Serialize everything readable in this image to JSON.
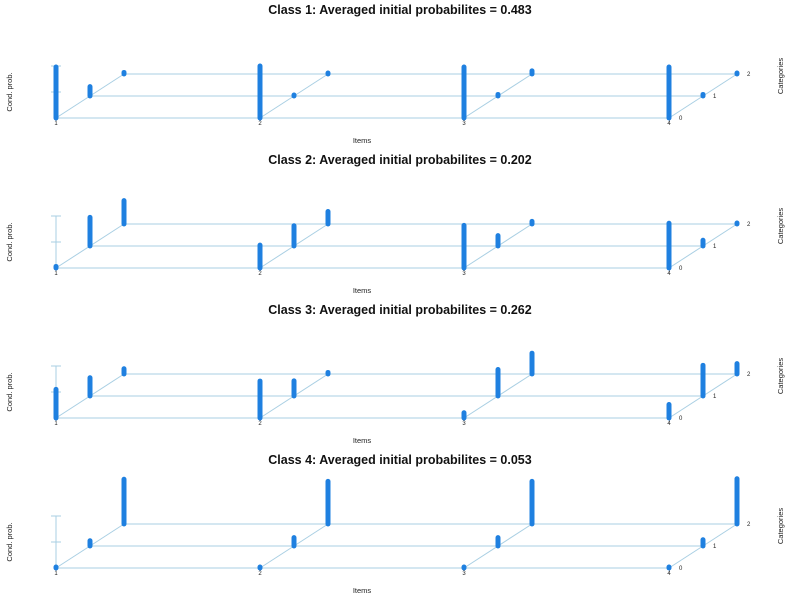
{
  "chart_data": [
    {
      "type": "bar",
      "title": "Class 1: Averaged initial probabilites = 0.483",
      "xlabel": "Items",
      "ylabel": "Cond. prob.",
      "zlabel": "Categories",
      "items": [
        "1",
        "2",
        "3",
        "4"
      ],
      "categories": [
        "0",
        "1",
        "2"
      ],
      "ylim": [
        0,
        1
      ],
      "grid": true,
      "values": [
        [
          0.98,
          0.18,
          0.03
        ],
        [
          1.0,
          0.02,
          0.02
        ],
        [
          0.98,
          0.03,
          0.06
        ],
        [
          0.98,
          0.03,
          0.02
        ]
      ]
    },
    {
      "type": "bar",
      "title": "Class 2: Averaged initial probabilites = 0.202",
      "xlabel": "Items",
      "ylabel": "Cond. prob.",
      "zlabel": "Categories",
      "items": [
        "1",
        "2",
        "3",
        "4"
      ],
      "categories": [
        "0",
        "1",
        "2"
      ],
      "ylim": [
        0,
        1
      ],
      "grid": true,
      "values": [
        [
          0.03,
          0.55,
          0.45
        ],
        [
          0.44,
          0.39,
          0.24
        ],
        [
          0.82,
          0.2,
          0.05
        ],
        [
          0.86,
          0.11,
          0.02
        ]
      ]
    },
    {
      "type": "bar",
      "title": "Class 3: Averaged initial probabilites = 0.262",
      "xlabel": "Items",
      "ylabel": "Cond. prob.",
      "zlabel": "Categories",
      "items": [
        "1",
        "2",
        "3",
        "4"
      ],
      "categories": [
        "0",
        "1",
        "2"
      ],
      "ylim": [
        0,
        1
      ],
      "grid": true,
      "values": [
        [
          0.55,
          0.35,
          0.1
        ],
        [
          0.71,
          0.29,
          0.03
        ],
        [
          0.1,
          0.51,
          0.4
        ],
        [
          0.26,
          0.59,
          0.2
        ]
      ]
    },
    {
      "type": "bar",
      "title": "Class 4: Averaged initial probabilites = 0.053",
      "xlabel": "Items",
      "ylabel": "Cond. prob.",
      "zlabel": "Categories",
      "items": [
        "1",
        "2",
        "3",
        "4"
      ],
      "categories": [
        "0",
        "1",
        "2"
      ],
      "ylim": [
        0,
        1
      ],
      "grid": true,
      "values": [
        [
          0.02,
          0.1,
          0.86
        ],
        [
          0.02,
          0.16,
          0.82
        ],
        [
          0.02,
          0.16,
          0.82
        ],
        [
          0.02,
          0.12,
          0.87
        ]
      ]
    }
  ]
}
